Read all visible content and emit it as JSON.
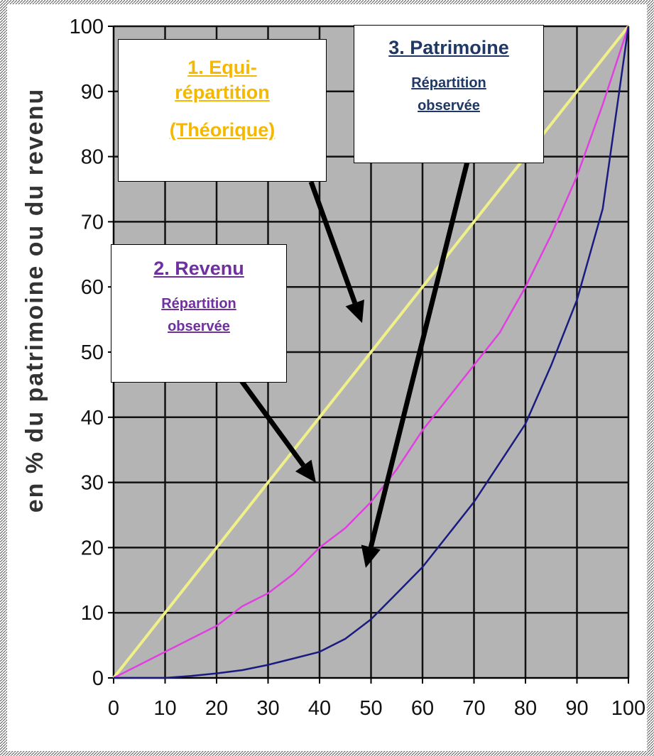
{
  "chart_data": {
    "type": "line",
    "title": "",
    "xlabel": "",
    "ylabel": "en % du patrimoine ou du revenu",
    "xlim": [
      0,
      100
    ],
    "ylim": [
      0,
      100
    ],
    "x_ticks": [
      0,
      10,
      20,
      30,
      40,
      50,
      60,
      70,
      80,
      90,
      100
    ],
    "y_ticks": [
      0,
      10,
      20,
      30,
      40,
      50,
      60,
      70,
      80,
      90,
      100
    ],
    "grid": true,
    "background": "#b4b4b4",
    "series": [
      {
        "color": "#f0f08a",
        "x": [
          0,
          100
        ],
        "y": [
          0,
          100
        ]
      },
      {
        "color": "#e040e0",
        "x": [
          0,
          5,
          10,
          15,
          20,
          25,
          30,
          35,
          40,
          45,
          50,
          55,
          60,
          65,
          70,
          75,
          80,
          85,
          90,
          95,
          100
        ],
        "y": [
          0,
          2,
          4,
          6,
          8,
          11,
          13,
          16,
          20,
          23,
          27,
          32,
          38,
          43,
          48,
          53,
          60,
          68,
          77,
          88,
          100
        ]
      },
      {
        "color": "#1a1a80",
        "x": [
          0,
          5,
          10,
          15,
          20,
          25,
          30,
          35,
          40,
          45,
          50,
          55,
          60,
          65,
          70,
          75,
          80,
          85,
          90,
          95,
          100
        ],
        "y": [
          0,
          0,
          0,
          0.3,
          0.7,
          1.2,
          2,
          3,
          4,
          6,
          9,
          13,
          17,
          22,
          27,
          33,
          39,
          48,
          58,
          72,
          100
        ]
      }
    ]
  },
  "annotations": [
    {
      "title_lines": [
        "1. Equi-",
        "répartition",
        "(Théorique)"
      ],
      "subtitle_lines": [],
      "color": "#f5b800"
    },
    {
      "title_lines": [
        "2. Revenu"
      ],
      "subtitle_lines": [
        "Répartition",
        "observée"
      ],
      "color": "#7030a0"
    },
    {
      "title_lines": [
        "3. Patrimoine"
      ],
      "subtitle_lines": [
        "Répartition",
        "observée"
      ],
      "color": "#1f3864"
    }
  ]
}
